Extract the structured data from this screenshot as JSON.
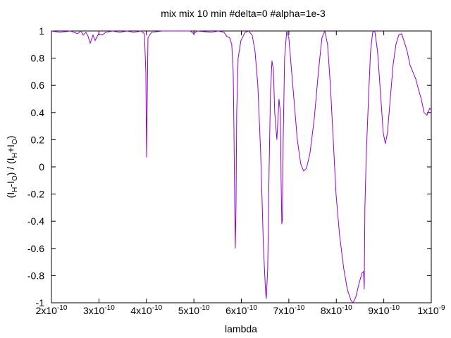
{
  "chart_data": {
    "type": "line",
    "title": "mix mix 10 min #delta=0 #alpha=1e-3",
    "xlabel": "lambda",
    "ylabel": {
      "parts": [
        "(I",
        "H",
        "-I",
        "O",
        ") / (I",
        "H",
        "+I",
        "O",
        ")"
      ]
    },
    "xlim": [
      2e-10,
      1e-09
    ],
    "ylim": [
      -1,
      1
    ],
    "xticks": [
      {
        "value": 2e-10,
        "label": "2x10",
        "exponent": "-10"
      },
      {
        "value": 3e-10,
        "label": "3x10",
        "exponent": "-10"
      },
      {
        "value": 4e-10,
        "label": "4x10",
        "exponent": "-10"
      },
      {
        "value": 5e-10,
        "label": "5x10",
        "exponent": "-10"
      },
      {
        "value": 6e-10,
        "label": "6x10",
        "exponent": "-10"
      },
      {
        "value": 7e-10,
        "label": "7x10",
        "exponent": "-10"
      },
      {
        "value": 8e-10,
        "label": "8x10",
        "exponent": "-10"
      },
      {
        "value": 9e-10,
        "label": "9x10",
        "exponent": "-10"
      },
      {
        "value": 1e-09,
        "label": "1x10",
        "exponent": "-9"
      }
    ],
    "yticks": [
      1,
      0.8,
      0.6,
      0.4,
      0.2,
      0,
      -0.2,
      -0.4,
      -0.6,
      -0.8,
      -1
    ],
    "grid": false,
    "x": [
      2e-10,
      2.178e-10,
      2.401e-10,
      2.549e-10,
      2.623e-10,
      2.668e-10,
      2.727e-10,
      2.772e-10,
      2.816e-10,
      2.875e-10,
      2.92e-10,
      2.994e-10,
      3.068e-10,
      3.142e-10,
      3.291e-10,
      3.439e-10,
      3.588e-10,
      3.736e-10,
      3.884e-10,
      3.958e-10,
      3.988e-10,
      4.003e-10,
      4.018e-10,
      4.033e-10,
      4.107e-10,
      4.329e-10,
      4.626e-10,
      4.923e-10,
      4.997e-10,
      5.071e-10,
      5.368e-10,
      5.516e-10,
      5.635e-10,
      5.694e-10,
      5.754e-10,
      5.798e-10,
      5.828e-10,
      5.843e-10,
      5.858e-10,
      5.872e-10,
      5.887e-10,
      5.902e-10,
      5.932e-10,
      5.991e-10,
      6.08e-10,
      6.154e-10,
      6.228e-10,
      6.288e-10,
      6.347e-10,
      6.407e-10,
      6.466e-10,
      6.51e-10,
      6.525e-10,
      6.555e-10,
      6.585e-10,
      6.614e-10,
      6.644e-10,
      6.674e-10,
      6.703e-10,
      6.748e-10,
      6.792e-10,
      6.822e-10,
      6.837e-10,
      6.852e-10,
      6.866e-10,
      6.881e-10,
      6.911e-10,
      6.955e-10,
      7e-10,
      7.059e-10,
      7.119e-10,
      7.178e-10,
      7.252e-10,
      7.312e-10,
      7.371e-10,
      7.445e-10,
      7.534e-10,
      7.623e-10,
      7.697e-10,
      7.757e-10,
      7.816e-10,
      7.875e-10,
      7.935e-10,
      7.994e-10,
      8.068e-10,
      8.157e-10,
      8.231e-10,
      8.306e-10,
      8.35e-10,
      8.409e-10,
      8.484e-10,
      8.543e-10,
      8.573e-10,
      8.588e-10,
      8.602e-10,
      8.632e-10,
      8.677e-10,
      8.721e-10,
      8.766e-10,
      8.81e-10,
      8.869e-10,
      8.929e-10,
      8.988e-10,
      9.033e-10,
      9.077e-10,
      9.136e-10,
      9.196e-10,
      9.255e-10,
      9.315e-10,
      9.374e-10,
      9.433e-10,
      9.493e-10,
      9.552e-10,
      9.611e-10,
      9.671e-10,
      9.73e-10,
      9.789e-10,
      9.849e-10,
      9.908e-10,
      9.967e-10,
      1e-09
    ],
    "series": [
      {
        "color": "#9400d3",
        "values": [
          1,
          0.99,
          1,
          0.98,
          1,
          0.97,
          0.99,
          0.96,
          0.91,
          0.97,
          0.93,
          0.98,
          0.97,
          0.99,
          1,
          0.99,
          1,
          0.99,
          1,
          0.98,
          0.7,
          0.07,
          0.5,
          0.95,
          0.99,
          1,
          1,
          1,
          0.98,
          1,
          0.99,
          1,
          0.99,
          0.96,
          0.95,
          0.9,
          0.7,
          0.3,
          -0.2,
          -0.6,
          -0.3,
          0.4,
          0.8,
          0.93,
          0.99,
          1,
          0.97,
          0.85,
          0.6,
          0.1,
          -0.6,
          -0.92,
          -0.97,
          -0.75,
          0,
          0.55,
          0.78,
          0.72,
          0.4,
          0.2,
          0.5,
          0.4,
          -0.1,
          -0.42,
          -0.38,
          0.2,
          0.8,
          1,
          0.95,
          0.7,
          0.45,
          0.2,
          0.02,
          -0.03,
          -0.01,
          0.1,
          0.35,
          0.7,
          0.95,
          1,
          0.9,
          0.6,
          0.2,
          -0.2,
          -0.5,
          -0.75,
          -0.9,
          -0.98,
          -1,
          -0.96,
          -0.85,
          -0.78,
          -0.77,
          -0.9,
          -0.3,
          0.1,
          0.5,
          0.85,
          0.99,
          1,
          0.85,
          0.55,
          0.25,
          0.17,
          0.25,
          0.5,
          0.75,
          0.9,
          0.97,
          0.98,
          0.92,
          0.85,
          0.75,
          0.7,
          0.65,
          0.57,
          0.5,
          0.4,
          0.38,
          0.43,
          0.42
        ]
      }
    ]
  }
}
